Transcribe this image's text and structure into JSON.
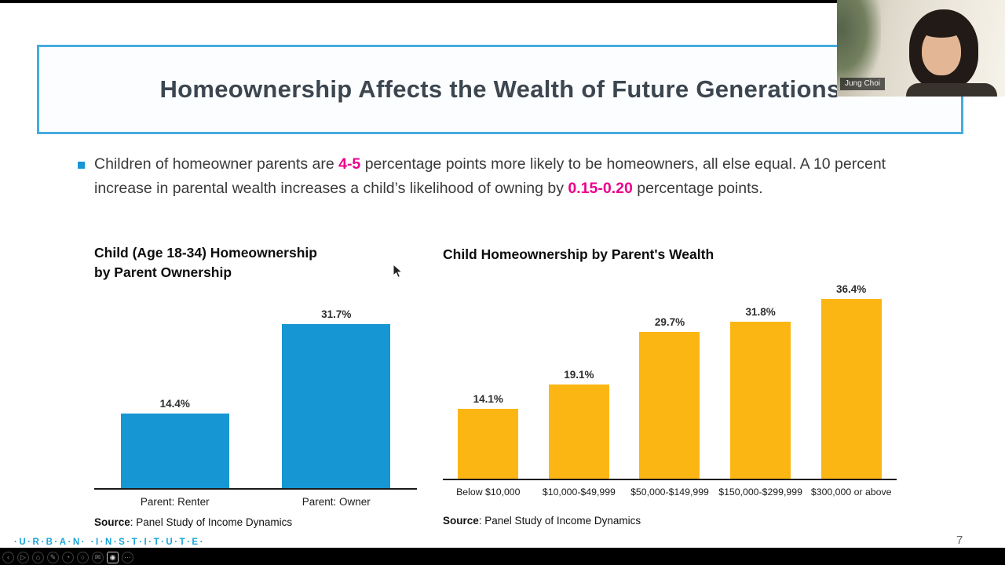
{
  "window": {
    "webcam": {
      "name_label": "Jung Choi"
    },
    "player_controls": [
      {
        "name": "back",
        "glyph": "‹",
        "active": false
      },
      {
        "name": "play",
        "glyph": "▷",
        "active": false
      },
      {
        "name": "home",
        "glyph": "⌂",
        "active": false
      },
      {
        "name": "edit",
        "glyph": "✎",
        "active": false
      },
      {
        "name": "history",
        "glyph": "◔",
        "active": false
      },
      {
        "name": "search",
        "glyph": "○",
        "active": false
      },
      {
        "name": "message",
        "glyph": "✉",
        "active": false
      },
      {
        "name": "camera",
        "glyph": "◉",
        "active": true
      },
      {
        "name": "more",
        "glyph": "⋯",
        "active": false
      }
    ]
  },
  "slide": {
    "title": "Homeownership Affects the Wealth of Future Generations",
    "bullet": {
      "part1": "Children of homeowner parents are ",
      "highlight1": "4-5",
      "part2": " percentage points more likely to be homeowners, all else equal. A 10 percent increase in parental wealth increases a child’s likelihood of owning by ",
      "highlight2": "0.15-0.20",
      "part3": " percentage points."
    },
    "logo_text": "·U·R·B·A·N· ·I·N·S·T·I·T·U·T·E·",
    "page_number": "7"
  },
  "colors": {
    "accent_blue": "#1696d2",
    "accent_yellow": "#fcb614",
    "highlight_magenta": "#ec008b",
    "title_border_blue": "#46abde"
  },
  "chart_data": [
    {
      "type": "bar",
      "title": "Child (Age 18-34) Homeownership by Parent Ownership",
      "title_lines": [
        "Child (Age 18-34) Homeownership",
        "by Parent Ownership"
      ],
      "categories": [
        "Parent: Renter",
        "Parent: Owner"
      ],
      "values": [
        14.4,
        31.7
      ],
      "value_labels": [
        "14.4%",
        "31.7%"
      ],
      "bar_color": "#1696d2",
      "ylim": [
        0,
        35
      ],
      "grid": false,
      "source_label": "Source",
      "source_text": ": Panel Study of Income Dynamics"
    },
    {
      "type": "bar",
      "title": "Child Homeownership by Parent's Wealth",
      "categories": [
        "Below $10,000",
        "$10,000-$49,999",
        "$50,000-$149,999",
        "$150,000-$299,999",
        "$300,000 or above"
      ],
      "values": [
        14.1,
        19.1,
        29.7,
        31.8,
        36.4
      ],
      "value_labels": [
        "14.1%",
        "19.1%",
        "29.7%",
        "31.8%",
        "36.4%"
      ],
      "bar_color": "#fcb614",
      "ylim": [
        0,
        40
      ],
      "grid": false,
      "source_label": "Source",
      "source_text": ": Panel Study of Income Dynamics"
    }
  ]
}
